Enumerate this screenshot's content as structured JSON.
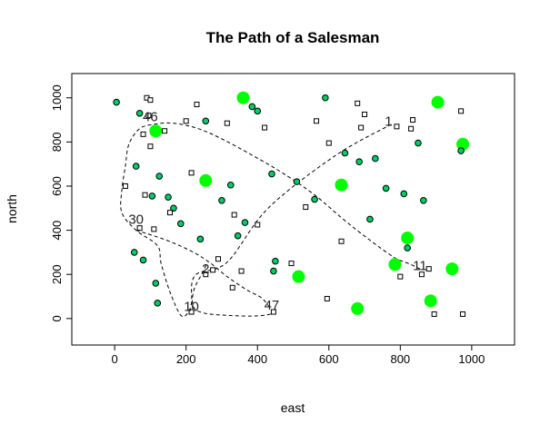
{
  "chart_data": {
    "type": "scatter",
    "title": "The Path of a Salesman",
    "xlabel": "east",
    "ylabel": "north",
    "xlim": [
      -120,
      1120
    ],
    "ylim": [
      -120,
      1110
    ],
    "x_ticks": [
      0,
      200,
      400,
      600,
      800,
      1000
    ],
    "y_ticks": [
      0,
      200,
      400,
      600,
      800,
      1000
    ],
    "x_tick_labels": [
      "0",
      "200",
      "400",
      "600",
      "800",
      "1000"
    ],
    "y_tick_labels": [
      "0",
      "200",
      "400",
      "600",
      "800",
      "1000"
    ],
    "grid": false,
    "legend": "none",
    "colors": {
      "big_point": "#00ff00",
      "small_green": "#00cc66",
      "square": "#ffffff",
      "outline": "#000000",
      "path": "#000000"
    },
    "series": [
      {
        "kind": "large-green-circles",
        "points": [
          [
            115,
            850
          ],
          [
            255,
            625
          ],
          [
            360,
            1000
          ],
          [
            515,
            190
          ],
          [
            635,
            605
          ],
          [
            680,
            45
          ],
          [
            785,
            245
          ],
          [
            820,
            365
          ],
          [
            885,
            80
          ],
          [
            905,
            980
          ],
          [
            945,
            225
          ],
          [
            975,
            790
          ]
        ]
      },
      {
        "kind": "small-green-circles",
        "points": [
          [
            5,
            980
          ],
          [
            70,
            930
          ],
          [
            125,
            645
          ],
          [
            60,
            690
          ],
          [
            105,
            555
          ],
          [
            150,
            550
          ],
          [
            165,
            500
          ],
          [
            185,
            430
          ],
          [
            80,
            265
          ],
          [
            115,
            160
          ],
          [
            120,
            70
          ],
          [
            55,
            300
          ],
          [
            240,
            360
          ],
          [
            255,
            895
          ],
          [
            300,
            535
          ],
          [
            325,
            605
          ],
          [
            345,
            375
          ],
          [
            365,
            435
          ],
          [
            385,
            960
          ],
          [
            400,
            940
          ],
          [
            440,
            655
          ],
          [
            445,
            215
          ],
          [
            450,
            260
          ],
          [
            510,
            620
          ],
          [
            560,
            540
          ],
          [
            590,
            1000
          ],
          [
            645,
            750
          ],
          [
            685,
            710
          ],
          [
            715,
            450
          ],
          [
            730,
            725
          ],
          [
            760,
            590
          ],
          [
            810,
            565
          ],
          [
            820,
            320
          ],
          [
            850,
            795
          ],
          [
            865,
            535
          ],
          [
            970,
            760
          ]
        ]
      },
      {
        "kind": "open-squares",
        "points": [
          [
            30,
            600
          ],
          [
            70,
            410
          ],
          [
            80,
            835
          ],
          [
            85,
            560
          ],
          [
            90,
            1000
          ],
          [
            95,
            920
          ],
          [
            100,
            990
          ],
          [
            100,
            780
          ],
          [
            110,
            405
          ],
          [
            140,
            850
          ],
          [
            155,
            480
          ],
          [
            200,
            895
          ],
          [
            215,
            660
          ],
          [
            215,
            30
          ],
          [
            230,
            970
          ],
          [
            255,
            200
          ],
          [
            275,
            220
          ],
          [
            290,
            270
          ],
          [
            315,
            885
          ],
          [
            330,
            140
          ],
          [
            335,
            470
          ],
          [
            355,
            215
          ],
          [
            400,
            425
          ],
          [
            420,
            865
          ],
          [
            445,
            30
          ],
          [
            495,
            250
          ],
          [
            535,
            505
          ],
          [
            565,
            895
          ],
          [
            595,
            90
          ],
          [
            600,
            795
          ],
          [
            635,
            350
          ],
          [
            680,
            975
          ],
          [
            690,
            865
          ],
          [
            700,
            925
          ],
          [
            790,
            870
          ],
          [
            800,
            190
          ],
          [
            830,
            860
          ],
          [
            835,
            900
          ],
          [
            860,
            200
          ],
          [
            880,
            225
          ],
          [
            895,
            20
          ],
          [
            970,
            940
          ],
          [
            975,
            20
          ]
        ]
      }
    ],
    "tour_path": [
      [
        775,
        880
      ],
      [
        620,
        740
      ],
      [
        430,
        500
      ],
      [
        315,
        255
      ],
      [
        225,
        195
      ],
      [
        215,
        70
      ],
      [
        205,
        25
      ],
      [
        185,
        15
      ],
      [
        155,
        120
      ],
      [
        130,
        250
      ],
      [
        120,
        330
      ],
      [
        60,
        400
      ],
      [
        20,
        480
      ],
      [
        20,
        580
      ],
      [
        30,
        690
      ],
      [
        40,
        790
      ],
      [
        70,
        860
      ],
      [
        110,
        880
      ],
      [
        165,
        885
      ],
      [
        235,
        860
      ],
      [
        305,
        810
      ],
      [
        385,
        740
      ],
      [
        470,
        660
      ],
      [
        560,
        560
      ],
      [
        640,
        450
      ],
      [
        715,
        355
      ],
      [
        785,
        275
      ],
      [
        830,
        245
      ],
      [
        860,
        220
      ]
    ],
    "loop_path": [
      [
        60,
        400
      ],
      [
        145,
        355
      ],
      [
        215,
        305
      ],
      [
        265,
        255
      ],
      [
        315,
        190
      ],
      [
        370,
        130
      ],
      [
        410,
        95
      ],
      [
        432,
        55
      ],
      [
        442,
        25
      ],
      [
        400,
        12
      ],
      [
        320,
        14
      ],
      [
        250,
        25
      ],
      [
        220,
        55
      ],
      [
        222,
        130
      ],
      [
        245,
        205
      ],
      [
        260,
        255
      ]
    ],
    "annotations": [
      {
        "text": "1",
        "x": 767,
        "y": 895
      },
      {
        "text": "46",
        "x": 100,
        "y": 915
      },
      {
        "text": "30",
        "x": 60,
        "y": 450
      },
      {
        "text": "2",
        "x": 255,
        "y": 225
      },
      {
        "text": "10",
        "x": 215,
        "y": 55
      },
      {
        "text": "47",
        "x": 440,
        "y": 60
      },
      {
        "text": "11",
        "x": 855,
        "y": 240
      }
    ]
  }
}
